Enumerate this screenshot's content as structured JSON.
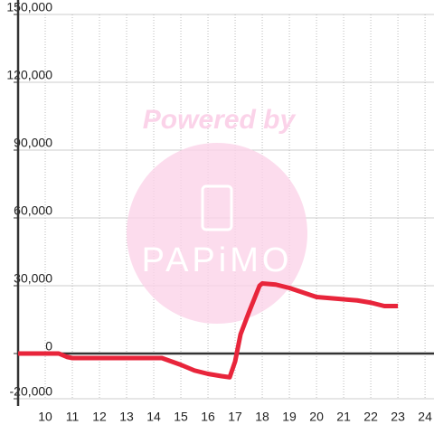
{
  "chart_data": {
    "type": "line",
    "x": [
      9,
      10,
      10.5,
      10.8,
      11,
      12,
      13,
      14,
      14.3,
      15,
      15.5,
      16,
      16.5,
      16.8,
      17,
      17.2,
      17.5,
      17.9,
      18,
      18.5,
      19,
      19.5,
      20,
      20.5,
      21,
      21.5,
      22,
      22.5,
      23
    ],
    "series": [
      {
        "color": "#e8253b",
        "values": [
          0,
          0,
          0,
          -1500,
          -2000,
          -2000,
          -2000,
          -2000,
          -2000,
          -5000,
          -7500,
          -9000,
          -10000,
          -10500,
          -3500,
          8500,
          18000,
          30000,
          31000,
          30500,
          29000,
          27000,
          25000,
          24500,
          24000,
          23500,
          22500,
          21000,
          21000
        ]
      }
    ],
    "xlim": [
      9,
      24.33
    ],
    "xticks": [
      10,
      11,
      12,
      13,
      14,
      15,
      16,
      17,
      18,
      19,
      20,
      21,
      22,
      23,
      24
    ],
    "ylim": [
      -20000,
      150000
    ],
    "yticks": [
      {
        "value": -20000,
        "label": "-20,000"
      },
      0,
      {
        "value": 30000,
        "label": "30,000"
      },
      {
        "value": 60000,
        "label": "60,000"
      },
      {
        "value": 90000,
        "label": "90,000"
      },
      {
        "value": 120000,
        "label": "120,000"
      },
      {
        "value": 150000,
        "label": "150,000"
      }
    ],
    "grid": true,
    "watermark": [
      "Powered by",
      "PAPiMO"
    ]
  }
}
